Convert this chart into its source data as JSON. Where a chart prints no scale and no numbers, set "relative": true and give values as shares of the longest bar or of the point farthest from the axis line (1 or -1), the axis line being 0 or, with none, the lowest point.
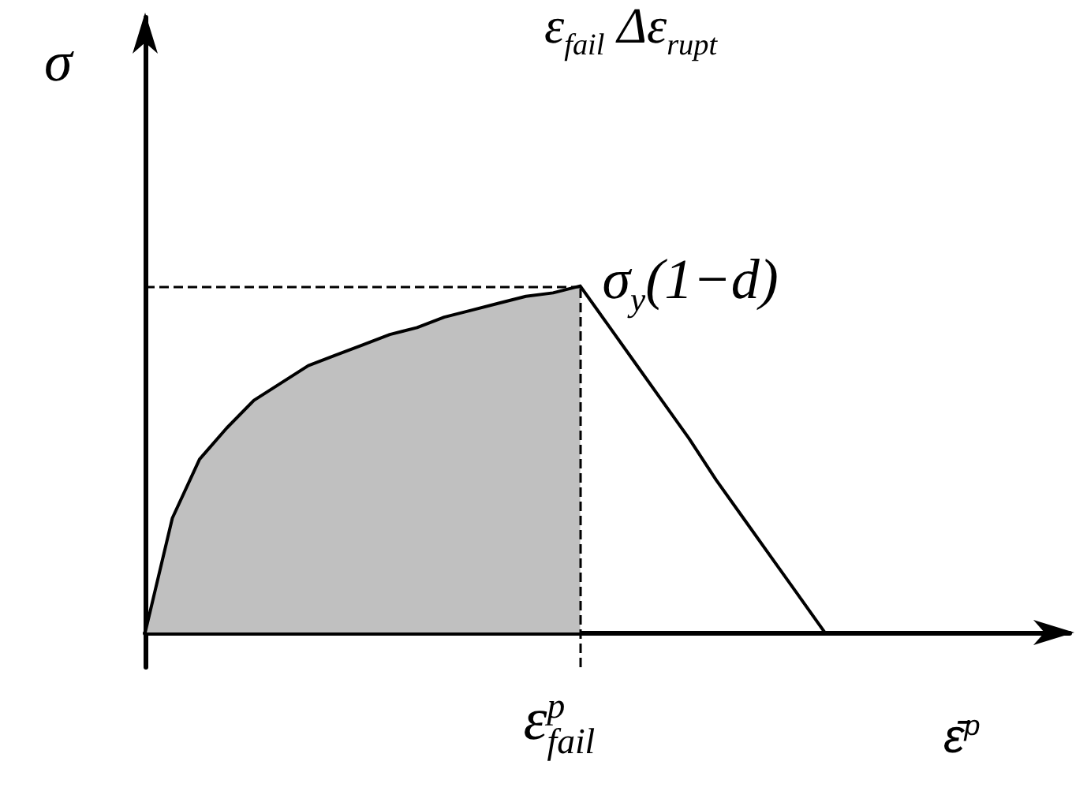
{
  "chart_data": {
    "type": "line",
    "title": "ε$_{fail}$ Δε$_{rupt}$",
    "xlabel": "ε̄$^{p}$",
    "ylabel": "σ",
    "relative": true,
    "categories": [
      null,
      null,
      null,
      null,
      null,
      null,
      null,
      null,
      null,
      null,
      null,
      null,
      null,
      null,
      null,
      null,
      null,
      null,
      null,
      null,
      null,
      null,
      null,
      null,
      null,
      null
    ],
    "series": [
      {
        "type": "area",
        "color": "#c0c0c0",
        "values": [
          0,
          0.33,
          0.5,
          0.59,
          0.67,
          0.72,
          0.77,
          0.8,
          0.83,
          0.86,
          0.88,
          0.91,
          0.93,
          0.95,
          0.97,
          0.98,
          1,
          null,
          null,
          null,
          null,
          null,
          null,
          null,
          null,
          null
        ]
      },
      {
        "color": "#000000",
        "values": [
          0,
          0.33,
          0.5,
          0.59,
          0.67,
          0.72,
          0.77,
          0.8,
          0.83,
          0.86,
          0.88,
          0.91,
          0.93,
          0.95,
          0.97,
          0.98,
          1,
          0.89,
          0.78,
          0.67,
          0.56,
          0.44,
          0.33,
          0.22,
          0.11,
          0
        ]
      }
    ],
    "ref_lines": [
      {
        "axis": "y",
        "value": 1,
        "label": "σ$_{y}$(1−d)",
        "color": "#000000",
        "line_style": "dashed"
      }
    ],
    "annotations": [
      "ε$^{p}$$_{fail}$"
    ]
  }
}
